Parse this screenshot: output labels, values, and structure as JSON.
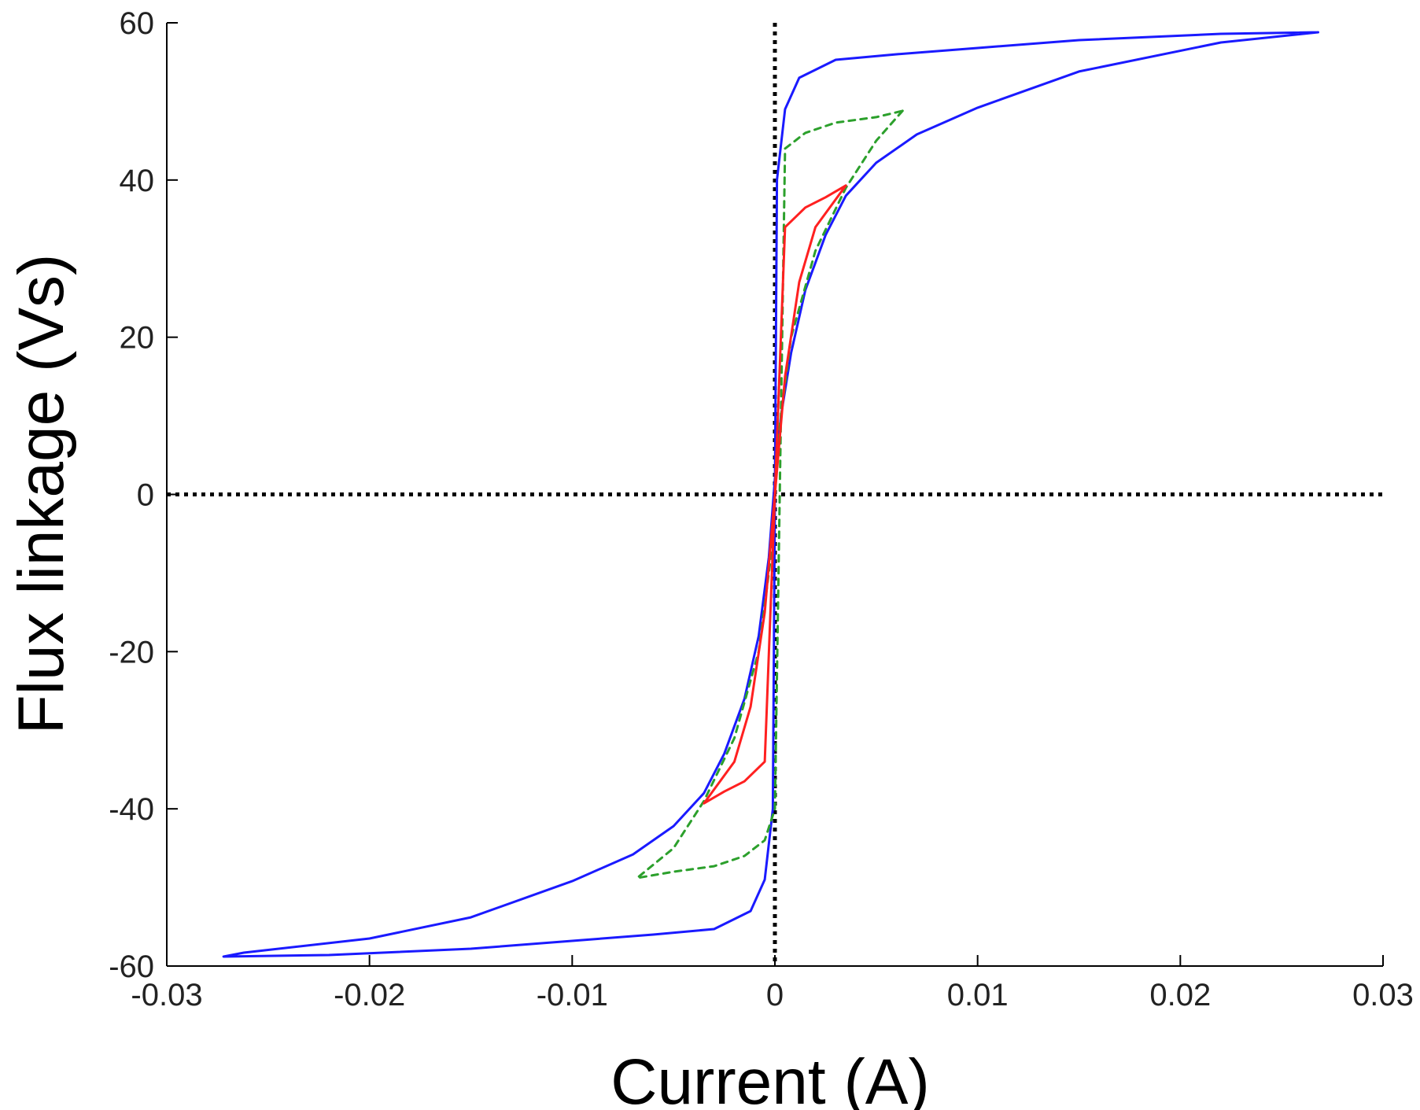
{
  "chart_data": {
    "type": "line",
    "title": "",
    "xlabel": "Current (A)",
    "ylabel": "Flux linkage (Vs)",
    "xlim": [
      -0.03,
      0.03
    ],
    "ylim": [
      -60,
      60
    ],
    "xticks": [
      -0.03,
      -0.02,
      -0.01,
      0,
      0.01,
      0.02,
      0.03
    ],
    "xtick_labels": [
      "-0.03",
      "-0.02",
      "-0.01",
      "0",
      "0.01",
      "0.02",
      "0.03"
    ],
    "yticks": [
      -60,
      -40,
      -20,
      0,
      20,
      40,
      60
    ],
    "ytick_labels": [
      "-60",
      "-40",
      "-20",
      "0",
      "20",
      "40",
      "60"
    ],
    "grid": false,
    "legend": "none",
    "reference_lines": [
      {
        "orientation": "vertical",
        "value": 0,
        "style": "dotted",
        "color": "#000000"
      },
      {
        "orientation": "horizontal",
        "value": 0,
        "style": "dotted",
        "color": "#000000"
      }
    ],
    "series": [
      {
        "color": "#1a1aff",
        "style": "solid",
        "x": [
          0.0268,
          0.022,
          0.015,
          0.01,
          0.007,
          0.005,
          0.0035,
          0.0025,
          0.0015,
          0.0008,
          0.0003,
          0.0,
          -0.0003,
          -0.0008,
          -0.0015,
          -0.0025,
          -0.0035,
          -0.005,
          -0.007,
          -0.01,
          -0.015,
          -0.02,
          -0.0262,
          -0.0272,
          -0.022,
          -0.015,
          -0.01,
          -0.006,
          -0.003,
          -0.0012,
          -0.0005,
          -0.0001,
          0.0,
          0.0001,
          0.0005,
          0.0012,
          0.003,
          0.006,
          0.01,
          0.015,
          0.022,
          0.0268
        ],
        "y": [
          58.8,
          57.5,
          53.8,
          49.2,
          45.8,
          42.2,
          38.0,
          33.0,
          26.0,
          18.0,
          10.0,
          2.0,
          -8.0,
          -18.0,
          -26.0,
          -33.0,
          -38.0,
          -42.2,
          -45.8,
          -49.2,
          -53.8,
          -56.5,
          -58.3,
          -58.8,
          -58.6,
          -57.8,
          -56.8,
          -56.0,
          -55.3,
          -53.0,
          -49.0,
          -40.0,
          0.0,
          40.0,
          49.0,
          53.0,
          55.3,
          56.0,
          56.8,
          57.8,
          58.6,
          58.8
        ]
      },
      {
        "color": "#2ca02c",
        "style": "dashed",
        "x": [
          0.0063,
          0.005,
          0.0035,
          0.002,
          0.0008,
          0.0002,
          0.0,
          -0.0002,
          -0.0008,
          -0.002,
          -0.0035,
          -0.005,
          -0.0068,
          -0.005,
          -0.003,
          -0.0015,
          -0.0005,
          0.0,
          0.0005,
          0.0015,
          0.003,
          0.005,
          0.0063
        ],
        "y": [
          48.8,
          45.0,
          39.0,
          31.0,
          20.0,
          8.0,
          0.0,
          -8.0,
          -20.0,
          -31.0,
          -39.0,
          -45.0,
          -48.8,
          -48.0,
          -47.3,
          -46.0,
          -44.0,
          -40.0,
          44.0,
          46.0,
          47.3,
          48.0,
          48.8
        ]
      },
      {
        "color": "#ff2020",
        "style": "solid",
        "x": [
          0.0035,
          0.002,
          0.0012,
          0.0005,
          0.0,
          -0.0005,
          -0.0012,
          -0.002,
          -0.0035,
          -0.0025,
          -0.0015,
          -0.0005,
          0.0005,
          0.0015,
          0.0025,
          0.0035
        ],
        "y": [
          39.3,
          34.0,
          27.0,
          15.0,
          0.0,
          -15.0,
          -27.0,
          -34.0,
          -39.3,
          -37.8,
          -36.5,
          -34.0,
          34.0,
          36.5,
          37.8,
          39.3
        ]
      }
    ]
  }
}
